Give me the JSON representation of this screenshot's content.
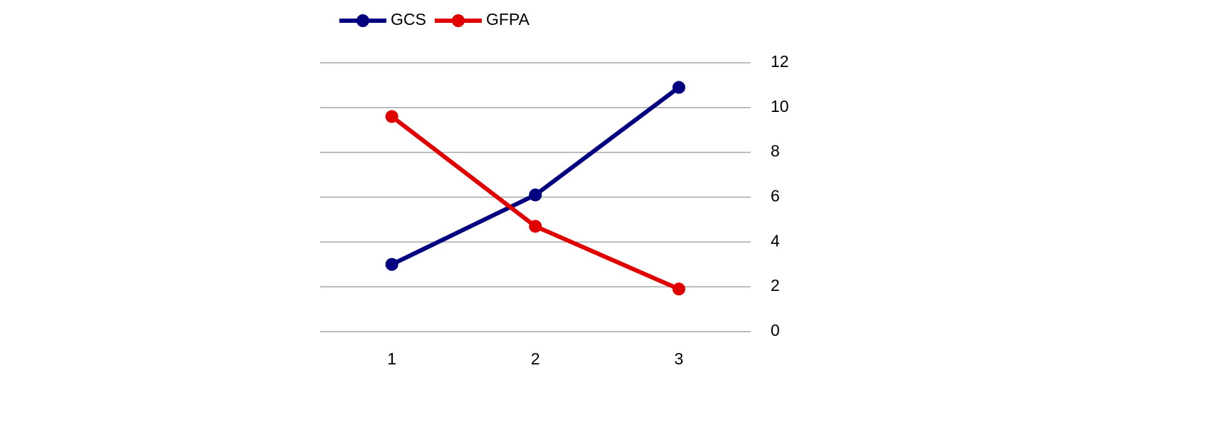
{
  "chart_data": {
    "type": "line",
    "categories": [
      "1",
      "2",
      "3"
    ],
    "series": [
      {
        "name": "GCS",
        "color": "#000080",
        "values": [
          3,
          6.1,
          10.9
        ]
      },
      {
        "name": "GFPA",
        "color": "#e00000",
        "values": [
          9.6,
          4.7,
          1.9
        ]
      }
    ],
    "ylim": [
      0,
      12
    ],
    "yticks": [
      0,
      2,
      4,
      6,
      8,
      10,
      12
    ],
    "y_axis_side": "right",
    "grid": true,
    "legend": "top-left"
  }
}
